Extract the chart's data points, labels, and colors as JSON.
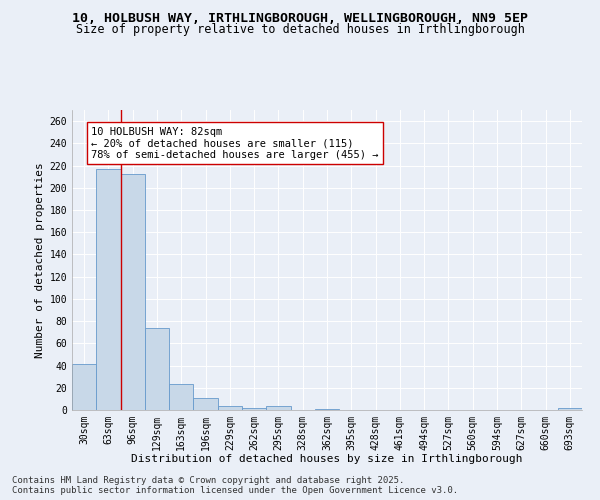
{
  "title_line1": "10, HOLBUSH WAY, IRTHLINGBOROUGH, WELLINGBOROUGH, NN9 5EP",
  "title_line2": "Size of property relative to detached houses in Irthlingborough",
  "xlabel": "Distribution of detached houses by size in Irthlingborough",
  "ylabel": "Number of detached properties",
  "categories": [
    "30sqm",
    "63sqm",
    "96sqm",
    "129sqm",
    "163sqm",
    "196sqm",
    "229sqm",
    "262sqm",
    "295sqm",
    "328sqm",
    "362sqm",
    "395sqm",
    "428sqm",
    "461sqm",
    "494sqm",
    "527sqm",
    "560sqm",
    "594sqm",
    "627sqm",
    "660sqm",
    "693sqm"
  ],
  "values": [
    41,
    217,
    212,
    74,
    23,
    11,
    4,
    2,
    4,
    0,
    1,
    0,
    0,
    0,
    0,
    0,
    0,
    0,
    0,
    0,
    2
  ],
  "bar_color": "#c8d8e8",
  "bar_edge_color": "#6699cc",
  "vline_x": 1.5,
  "vline_color": "#cc0000",
  "annotation_text": "10 HOLBUSH WAY: 82sqm\n← 20% of detached houses are smaller (115)\n78% of semi-detached houses are larger (455) →",
  "annotation_box_color": "#ffffff",
  "annotation_box_edge": "#cc0000",
  "ylim": [
    0,
    270
  ],
  "yticks": [
    0,
    20,
    40,
    60,
    80,
    100,
    120,
    140,
    160,
    180,
    200,
    220,
    240,
    260
  ],
  "bg_color": "#eaeff7",
  "grid_color": "#ffffff",
  "footer_line1": "Contains HM Land Registry data © Crown copyright and database right 2025.",
  "footer_line2": "Contains public sector information licensed under the Open Government Licence v3.0.",
  "title_fontsize": 9.5,
  "subtitle_fontsize": 8.5,
  "axis_label_fontsize": 8,
  "tick_fontsize": 7,
  "annotation_fontsize": 7.5,
  "footer_fontsize": 6.5
}
